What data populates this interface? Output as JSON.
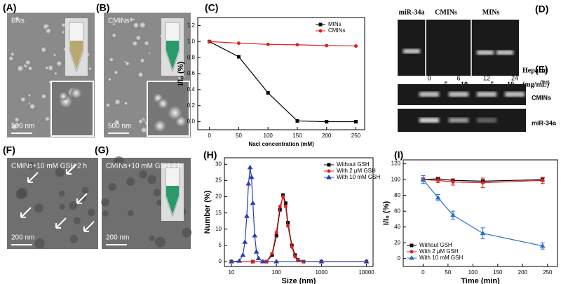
{
  "panels": [
    "(A)",
    "(B)",
    "(C)",
    "(D)",
    "(E)",
    "(F)",
    "(G)",
    "(H)",
    "(I)"
  ],
  "images": {
    "a": {
      "label": "BNs",
      "scale": "500 nm"
    },
    "b": {
      "label": "CMINs",
      "scale": "500 nm"
    },
    "f": {
      "label": "CMINs+10 mM GSH 2 h",
      "scale": "200 nm"
    },
    "g": {
      "label": "CMINs+10 mM GSH 4 h",
      "scale": "200 nm"
    }
  },
  "gel_d": {
    "lanes": [
      "miR-34a",
      "CMINs",
      "MINs"
    ],
    "concentrations": [
      "5",
      "10",
      "5",
      "10"
    ],
    "axis_label": "Heparin",
    "unit": "(mg/mL)"
  },
  "gel_e": {
    "times": [
      "0",
      "6",
      "12",
      "24"
    ],
    "unit": "(hr)",
    "rows": [
      "CMINs",
      "miR-34a"
    ]
  },
  "chart_data": [
    {
      "type": "line",
      "xlabel": "Nacl concentration (mM)",
      "ylabel": "I/I₀ (%)",
      "x": [
        0,
        50,
        100,
        150,
        200,
        250
      ],
      "series": [
        {
          "name": "MINs",
          "color": "#000000",
          "marker": "square",
          "values": [
            1.0,
            0.81,
            0.36,
            0.01,
            0.0,
            0.0
          ]
        },
        {
          "name": "CMINs",
          "color": "#e02020",
          "marker": "circle",
          "values": [
            1.0,
            0.98,
            0.965,
            0.96,
            0.95,
            0.945
          ]
        }
      ],
      "xlim": [
        -20,
        265
      ],
      "ylim": [
        -0.1,
        1.3
      ],
      "xticks": [
        0,
        50,
        100,
        150,
        200,
        250
      ],
      "yticks": [
        {
          "value": 0,
          "label": "0.0"
        },
        {
          "value": 0.2,
          "label": "0.2"
        },
        {
          "value": 0.4,
          "label": "0.4"
        },
        {
          "value": 0.6,
          "label": "0.6"
        },
        {
          "value": 0.8,
          "label": "0.8"
        },
        {
          "value": 1.0,
          "label": "1.0"
        },
        {
          "value": 1.2,
          "label": "1.2"
        }
      ],
      "legend": "upper right"
    },
    {
      "type": "line",
      "xlabel": "Size (nm)",
      "ylabel": "Number (%)",
      "xscale": "log",
      "series": [
        {
          "name": "Without GSH",
          "color": "#000000",
          "marker": "square",
          "x": [
            10,
            30,
            60,
            80,
            100,
            120,
            140,
            160,
            180,
            220,
            260,
            300,
            400,
            1000,
            10000
          ],
          "values": [
            0,
            0,
            0,
            2,
            8,
            16,
            20.5,
            18,
            12,
            5,
            2,
            0.5,
            0,
            0,
            0
          ]
        },
        {
          "name": "With 2 μM GSH",
          "color": "#e02020",
          "marker": "circle",
          "x": [
            10,
            30,
            60,
            80,
            100,
            120,
            140,
            160,
            180,
            220,
            260,
            300,
            400,
            1000,
            10000
          ],
          "values": [
            0,
            0,
            0,
            2.5,
            9,
            17,
            20,
            17,
            11,
            4.5,
            1.5,
            0.3,
            0,
            0,
            0
          ]
        },
        {
          "name": "With 10 mM GSH",
          "color": "#2a3fb0",
          "marker": "triangle",
          "x": [
            10,
            15,
            18,
            20,
            22,
            24,
            26,
            28,
            30,
            33,
            36,
            40,
            50,
            100,
            1000,
            10000
          ],
          "values": [
            0,
            0.2,
            2,
            6,
            14,
            24,
            29,
            26,
            18,
            8,
            3,
            1,
            0,
            0,
            0,
            0
          ]
        }
      ],
      "xlim": [
        7,
        14000
      ],
      "ylim": [
        -1.5,
        32
      ],
      "xticks": [
        10,
        100,
        1000,
        10000
      ],
      "yticks": [
        0,
        5,
        10,
        15,
        20,
        25,
        30
      ],
      "legend": "upper right"
    },
    {
      "type": "line",
      "xlabel": "Time (min)",
      "ylabel": "I/I₀ (%)",
      "x": [
        0,
        30,
        60,
        120,
        240
      ],
      "series": [
        {
          "name": "Without GSH",
          "color": "#000000",
          "marker": "square",
          "values": [
            100,
            101,
            99,
            98,
            100
          ],
          "errors": [
            2,
            2,
            2,
            2,
            2
          ]
        },
        {
          "name": "With 2 μM GSH",
          "color": "#e02020",
          "marker": "circle",
          "values": [
            100,
            99,
            97,
            96,
            99
          ],
          "errors": [
            2,
            3,
            4,
            6,
            4
          ]
        },
        {
          "name": "With 10 mM GSH",
          "color": "#2a6fc0",
          "marker": "triangle",
          "values": [
            100,
            77,
            55,
            32,
            16
          ],
          "errors": [
            5,
            4,
            5,
            7,
            4
          ]
        }
      ],
      "xlim": [
        -40,
        270
      ],
      "ylim": [
        -10,
        125
      ],
      "xticks": [
        0,
        50,
        100,
        150,
        200,
        250
      ],
      "yticks": [
        0,
        20,
        40,
        60,
        80,
        100,
        120
      ],
      "legend": "lower left"
    }
  ]
}
